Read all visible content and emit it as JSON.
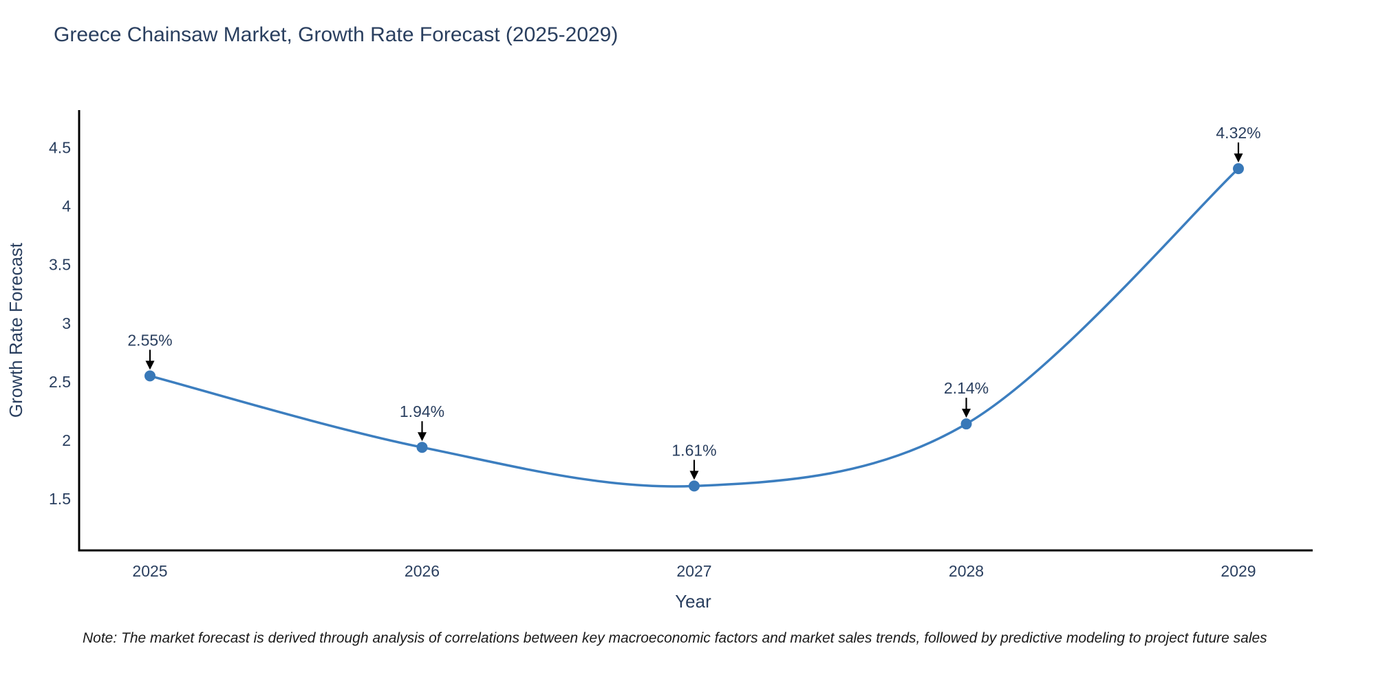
{
  "title": "Greece Chainsaw Market, Growth Rate Forecast (2025-2029)",
  "note": "Note: The market forecast is derived through analysis of correlations between key macroeconomic factors and market sales trends, followed by predictive modeling to project future sales",
  "chart_data": {
    "type": "line",
    "title": "Greece Chainsaw Market, Growth Rate Forecast (2025-2029)",
    "categories": [
      "2025",
      "2026",
      "2027",
      "2028",
      "2029"
    ],
    "values": [
      2.55,
      1.94,
      1.61,
      2.14,
      4.32
    ],
    "point_labels": [
      "2.55%",
      "1.94%",
      "1.61%",
      "2.14%",
      "4.32%"
    ],
    "xlabel": "Year",
    "ylabel": "Growth Rate Forecast",
    "yticks": [
      1.5,
      2,
      2.5,
      3,
      3.5,
      4,
      4.5
    ],
    "ylim": [
      1.06,
      4.82
    ],
    "grid": false,
    "legend": "none",
    "line_shape": "spline",
    "line_color": "#3c7ebf",
    "marker_color": "#3878b8",
    "axis_color": "#000000",
    "text_color": "#2a3f5f",
    "annotation_arrow_color": "#000000"
  }
}
